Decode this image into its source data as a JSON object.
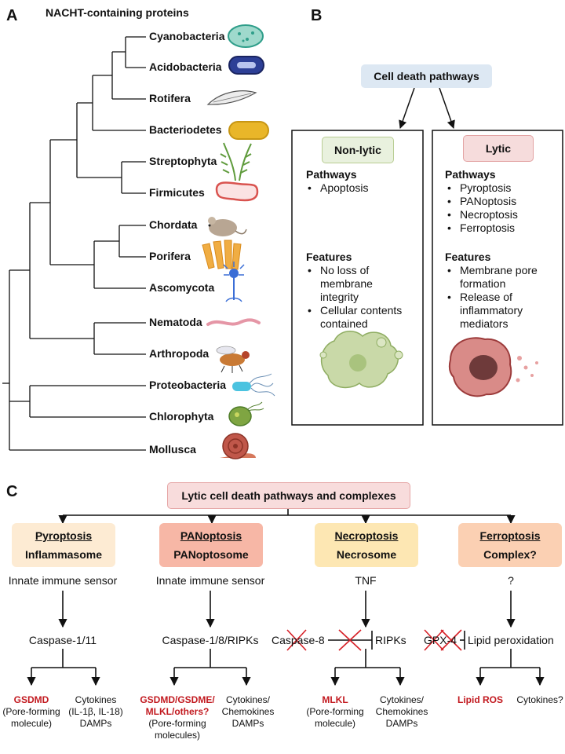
{
  "panel_a": {
    "letter": "A",
    "title": "NACHT-containing proteins",
    "taxa": [
      "Cyanobacteria",
      "Acidobacteria",
      "Rotifera",
      "Bacteriodetes",
      "Streptophyta",
      "Firmicutes",
      "Chordata",
      "Porifera",
      "Ascomycota",
      "Nematoda",
      "Arthropoda",
      "Proteobacteria",
      "Chlorophyta",
      "Mollusca"
    ]
  },
  "panel_b": {
    "letter": "B",
    "top_box": "Cell death pathways",
    "nonlytic": {
      "title": "Non-lytic",
      "pathways_heading": "Pathways",
      "pathways": [
        "Apoptosis"
      ],
      "features_heading": "Features",
      "features": [
        [
          "No loss of",
          "membrane",
          "integrity"
        ],
        [
          "Cellular contents",
          "contained"
        ]
      ]
    },
    "lytic": {
      "title": "Lytic",
      "pathways_heading": "Pathways",
      "pathways": [
        "Pyroptosis",
        "PANoptosis",
        "Necroptosis",
        "Ferroptosis"
      ],
      "features_heading": "Features",
      "features": [
        [
          "Membrane pore",
          "formation"
        ],
        [
          "Release of",
          "inflammatory",
          "mediators"
        ]
      ]
    }
  },
  "panel_c": {
    "letter": "C",
    "title": "Lytic cell death pathways and complexes",
    "columns": [
      {
        "pathway": "Pyroptosis",
        "complex": "Inflammasome",
        "trigger": "Innate immune sensor",
        "mid": "Caspase-1/11",
        "left_out": [
          "GSDMD"
        ],
        "left_sub": [
          "(Pore-forming",
          "molecule)"
        ],
        "right_out": [
          "Cytokines",
          "(IL-1β, IL-18)",
          "DAMPs"
        ]
      },
      {
        "pathway": "PANoptosis",
        "complex": "PANoptosome",
        "trigger": "Innate immune sensor",
        "mid": "Caspase-1/8/RIPKs",
        "left_out": [
          "GSDMD/GSDME/",
          "MLKL/others?"
        ],
        "left_sub": [
          "(Pore-forming",
          "molecules)"
        ],
        "right_out": [
          "Cytokines/",
          "Chemokines",
          "DAMPs"
        ]
      },
      {
        "pathway": "Necroptosis",
        "complex": "Necrosome",
        "trigger": "TNF",
        "mid_left": "Caspase-8",
        "mid": "RIPKs",
        "left_out": [
          "MLKL"
        ],
        "left_sub": [
          "(Pore-forming",
          "molecule)"
        ],
        "right_out": [
          "Cytokines/",
          "Chemokines",
          "DAMPs"
        ]
      },
      {
        "pathway": "Ferroptosis",
        "complex": "Complex?",
        "trigger": "?",
        "mid_left": "GPX-4",
        "mid": "Lipid peroxidation",
        "left_out": [
          "Lipid ROS"
        ],
        "left_sub": [],
        "right_out": [
          "Cytokines?"
        ]
      }
    ]
  },
  "colors": {
    "top_box": "#dde8f3",
    "nonlytic": "#e9f1de",
    "lytic": "#f6dcdc",
    "c_title": "#f8dcdc",
    "pyroptosis": "#fdebd3",
    "panoptosis": "#f7b7a6",
    "necroptosis": "#fde7b3",
    "ferroptosis": "#fbd0b3",
    "red": "#c2191f"
  }
}
